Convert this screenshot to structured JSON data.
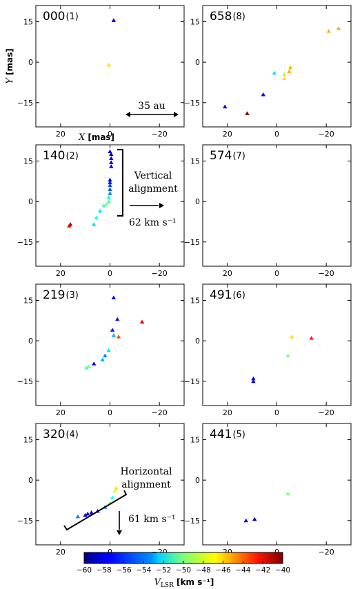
{
  "chart_data": {
    "type": "scatter",
    "marker": "triangle",
    "color_scale": "jet",
    "xlim": [
      30,
      -30
    ],
    "ylim": [
      -24,
      21
    ],
    "xticks": [
      "20",
      "0",
      "−20"
    ],
    "yticks": [
      "15",
      "0",
      "−15"
    ],
    "xlabel": "X [mas]",
    "ylabel": "Y [mas]",
    "colorbar": {
      "label": "V_LSR [km s⁻¹]",
      "min": -60,
      "max": -40,
      "ticks": [
        "−60",
        "−58",
        "−56",
        "−54",
        "−52",
        "−50",
        "−48",
        "−46",
        "−44",
        "−42",
        "−40"
      ]
    },
    "panels": [
      {
        "epoch": "000",
        "index": "(1)",
        "points": [
          {
            "x": -1.5,
            "y": 15.5,
            "v": -58
          },
          {
            "x": 0.5,
            "y": -1,
            "v": -47
          }
        ],
        "annotations": [
          "35 au"
        ]
      },
      {
        "epoch": "658",
        "index": "(8)",
        "points": [
          {
            "x": 21,
            "y": -16.5,
            "v": -58
          },
          {
            "x": 12,
            "y": -19,
            "v": -40
          },
          {
            "x": 5.5,
            "y": -12,
            "v": -58
          },
          {
            "x": 1,
            "y": -4,
            "v": -53
          },
          {
            "x": -3,
            "y": -4.5,
            "v": -49
          },
          {
            "x": -3,
            "y": -6,
            "v": -47
          },
          {
            "x": -5,
            "y": -3.5,
            "v": -46
          },
          {
            "x": -5.5,
            "y": -2,
            "v": -46
          },
          {
            "x": -21,
            "y": 11.5,
            "v": -46
          },
          {
            "x": -25,
            "y": 12.5,
            "v": -46
          }
        ]
      },
      {
        "epoch": "140",
        "index": "(2)",
        "points": [
          {
            "x": 0,
            "y": 18.5,
            "v": -59
          },
          {
            "x": -0.5,
            "y": 17.5,
            "v": -59
          },
          {
            "x": -0.5,
            "y": 16,
            "v": -58
          },
          {
            "x": -0.5,
            "y": 14.5,
            "v": -58
          },
          {
            "x": -0.5,
            "y": 13,
            "v": -58
          },
          {
            "x": 0,
            "y": 8,
            "v": -58
          },
          {
            "x": 0,
            "y": 7,
            "v": -57
          },
          {
            "x": 0,
            "y": 6,
            "v": -56
          },
          {
            "x": 0,
            "y": 4.5,
            "v": -56
          },
          {
            "x": 0,
            "y": 3,
            "v": -55
          },
          {
            "x": 0.5,
            "y": 1.5,
            "v": -52
          },
          {
            "x": 0.5,
            "y": 0,
            "v": -51
          },
          {
            "x": 1.5,
            "y": -1,
            "v": -50
          },
          {
            "x": 2.5,
            "y": -1.5,
            "v": -51
          },
          {
            "x": 4,
            "y": -3.5,
            "v": -53
          },
          {
            "x": 5.5,
            "y": -6,
            "v": -52
          },
          {
            "x": 6.5,
            "y": -8.5,
            "v": -53
          },
          {
            "x": 16,
            "y": -8.5,
            "v": -41
          },
          {
            "x": 16.5,
            "y": -9,
            "v": -42
          }
        ],
        "annotations": [
          "Vertical alignment",
          "62 km s⁻¹"
        ]
      },
      {
        "epoch": "574",
        "index": "(7)",
        "points": []
      },
      {
        "epoch": "219",
        "index": "(3)",
        "points": [
          {
            "x": -1.5,
            "y": 16,
            "v": -58
          },
          {
            "x": -3,
            "y": 8,
            "v": -57
          },
          {
            "x": -1,
            "y": 4,
            "v": -57
          },
          {
            "x": -1.5,
            "y": 2,
            "v": -54
          },
          {
            "x": -3.5,
            "y": 1.5,
            "v": -44
          },
          {
            "x": -13,
            "y": 7,
            "v": -42
          },
          {
            "x": 0.5,
            "y": -3.5,
            "v": -53
          },
          {
            "x": 2,
            "y": -5.5,
            "v": -55
          },
          {
            "x": 3,
            "y": -7,
            "v": -54
          },
          {
            "x": 6.5,
            "y": -8.5,
            "v": -58
          },
          {
            "x": 8.5,
            "y": -9.5,
            "v": -50
          },
          {
            "x": 9.5,
            "y": -10,
            "v": -51
          }
        ]
      },
      {
        "epoch": "491",
        "index": "(6)",
        "points": [
          {
            "x": -6,
            "y": 1.5,
            "v": -47
          },
          {
            "x": -14,
            "y": 1,
            "v": -43
          },
          {
            "x": -4.5,
            "y": -5.5,
            "v": -50
          },
          {
            "x": 9.5,
            "y": -14,
            "v": -58
          },
          {
            "x": 9.5,
            "y": -15,
            "v": -58
          }
        ]
      },
      {
        "epoch": "320",
        "index": "(4)",
        "points": [
          {
            "x": -2.5,
            "y": -3,
            "v": -47
          },
          {
            "x": -2,
            "y": -4,
            "v": -48
          },
          {
            "x": -1,
            "y": -6.5,
            "v": -52
          },
          {
            "x": 0,
            "y": -8.5,
            "v": -49
          },
          {
            "x": 2,
            "y": -10,
            "v": -55
          },
          {
            "x": 5,
            "y": -11.5,
            "v": -57
          },
          {
            "x": 7.5,
            "y": -12,
            "v": -58
          },
          {
            "x": 9,
            "y": -12.5,
            "v": -59
          },
          {
            "x": 10,
            "y": -13,
            "v": -58
          },
          {
            "x": 13,
            "y": -13.5,
            "v": -55
          }
        ],
        "annotations": [
          "Horizontal alignment",
          "61 km s⁻¹"
        ]
      },
      {
        "epoch": "441",
        "index": "(5)",
        "points": [
          {
            "x": -4.5,
            "y": -5,
            "v": -50
          },
          {
            "x": 9,
            "y": -14.5,
            "v": -59
          },
          {
            "x": 12.5,
            "y": -15,
            "v": -58
          }
        ]
      }
    ]
  }
}
